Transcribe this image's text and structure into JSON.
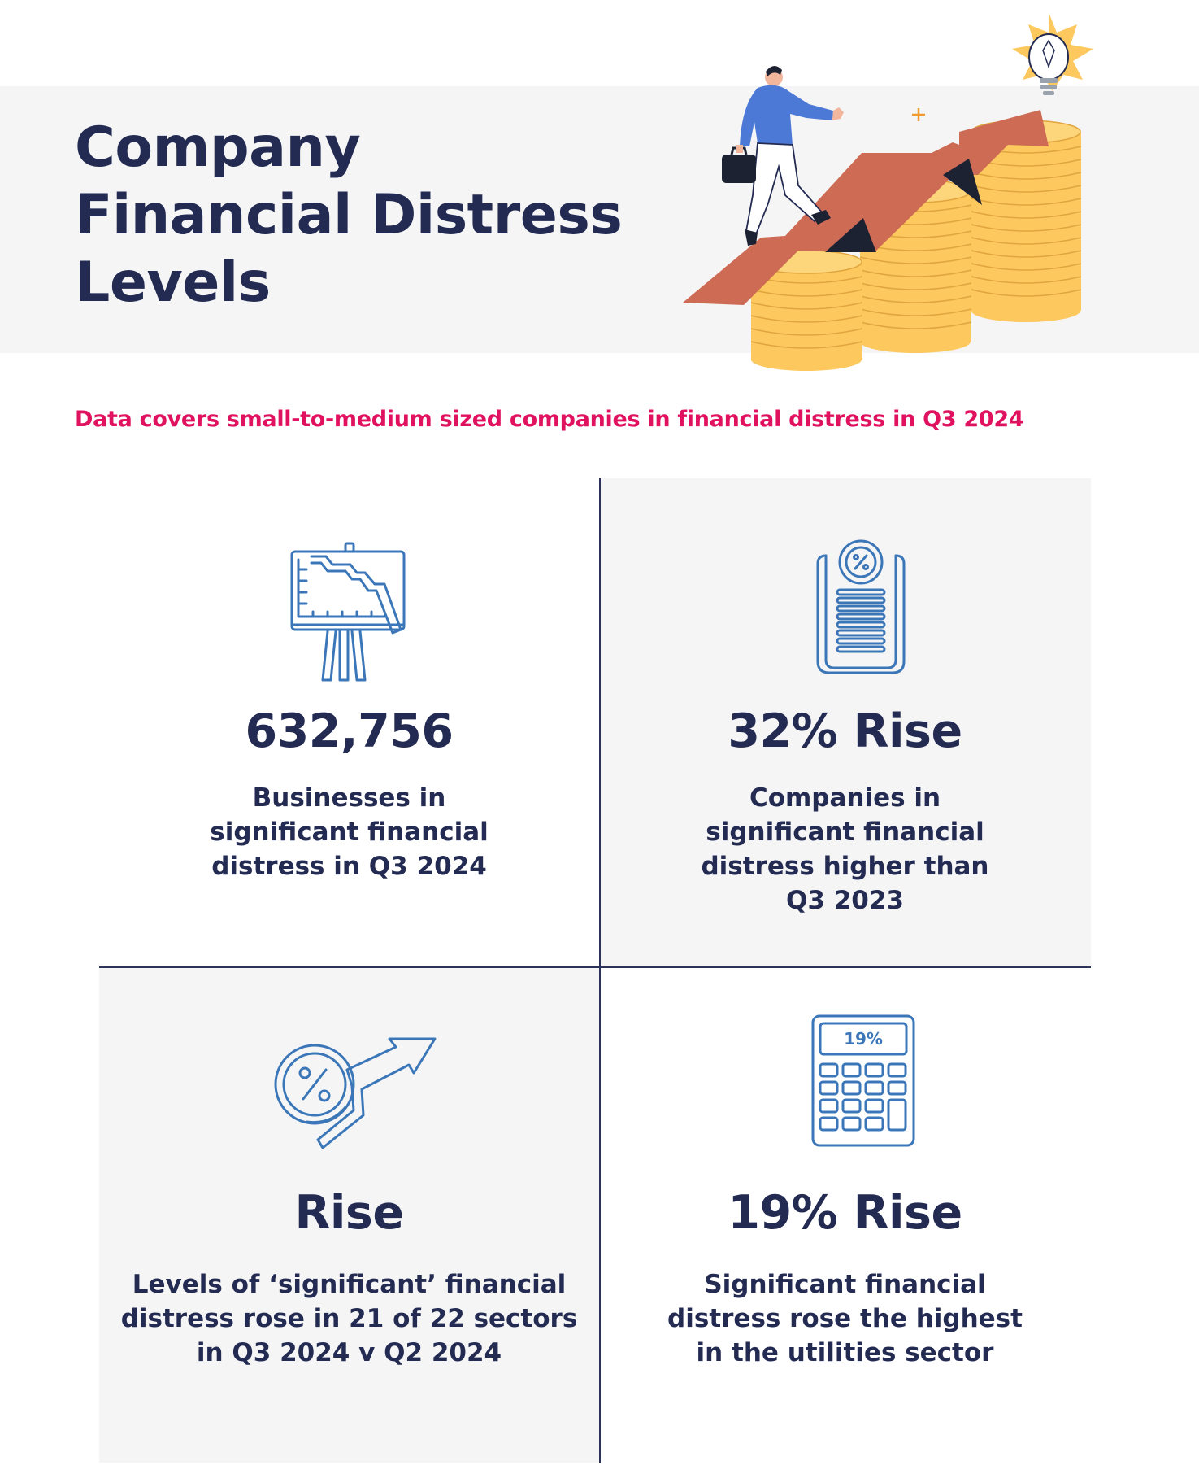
{
  "header": {
    "title_lines": [
      "Company",
      "Financial Distress",
      "Levels"
    ]
  },
  "subtitle": "Data covers small-to-medium sized companies in financial distress in Q3 2024",
  "stats": [
    {
      "value": "632,756",
      "description_lines": [
        "Businesses in",
        "significant financial",
        "distress in Q3 2024"
      ],
      "icon": "presentation-chart-down-icon"
    },
    {
      "value": "32% Rise",
      "description_lines": [
        "Companies in",
        "significant financial",
        "distress higher than",
        "Q3 2023"
      ],
      "icon": "percent-document-icon"
    },
    {
      "value": "Rise",
      "description_lines": [
        "Levels of ‘significant’ financial",
        "distress rose in 21 of 22 sectors",
        "in Q3 2024 v Q2 2024"
      ],
      "icon": "percent-rising-arrow-icon"
    },
    {
      "value": "19% Rise",
      "description_lines": [
        "Significant financial",
        "distress rose the highest",
        "in the utilities sector"
      ],
      "icon": "calculator-icon",
      "icon_display": "19%"
    }
  ],
  "colors": {
    "navy": "#232b52",
    "accent_pink": "#e0115f",
    "icon_blue": "#3b77b8",
    "panel_grey": "#f5f5f5",
    "arrow_orange": "#cd6b55",
    "coin_yellow": "#fdc85e"
  }
}
